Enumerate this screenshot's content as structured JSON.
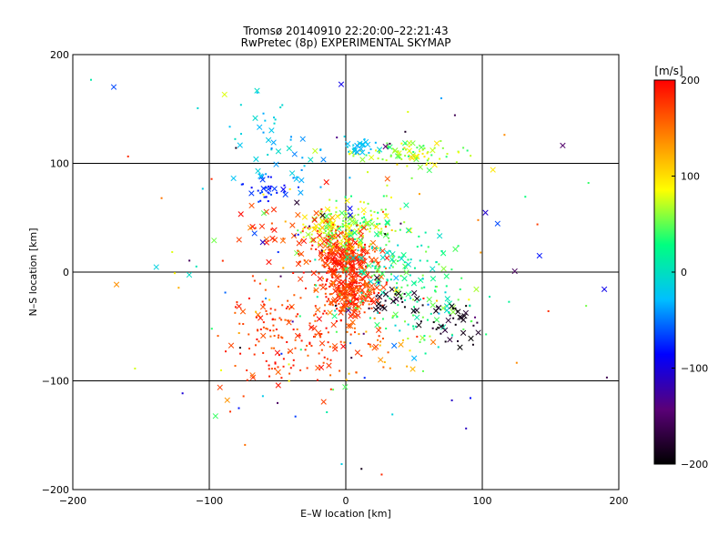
{
  "chart_data": {
    "type": "scatter",
    "title_line1": "Tromsø 20140910 22:20:00–22:21:43",
    "title_line2": "RwPretec (8p) EXPERIMENTAL SKYMAP",
    "xlabel": "E–W location [km]",
    "ylabel": "N–S location [km]",
    "xlim": [
      -200,
      200
    ],
    "ylim": [
      -200,
      200
    ],
    "xticks": [
      -200,
      -100,
      0,
      100,
      200
    ],
    "yticks": [
      -200,
      -100,
      0,
      100,
      200
    ],
    "gridlines": [
      -100,
      0,
      100
    ],
    "grid": true,
    "colorbar": {
      "label": "[m/s]",
      "range": [
        -200,
        200
      ],
      "ticks": [
        200,
        100,
        0,
        -100,
        -200
      ],
      "colormap": [
        "#000000",
        "#5a0077",
        "#0000ff",
        "#00bfff",
        "#00ff80",
        "#ffff00",
        "#ff8000",
        "#ff0000"
      ]
    },
    "markers": {
      "small": "dot",
      "large": "x"
    },
    "clusters": [
      {
        "cx": 0,
        "cy": 15,
        "sx": 12,
        "sy": 10,
        "n": 260,
        "vmin": 150,
        "vmax": 200,
        "xfrac": 0.45
      },
      {
        "cx": 2,
        "cy": -20,
        "sx": 12,
        "sy": 12,
        "n": 260,
        "vmin": 150,
        "vmax": 200,
        "xfrac": 0.45
      },
      {
        "cx": -10,
        "cy": 40,
        "sx": 12,
        "sy": 10,
        "n": 110,
        "vmin": 40,
        "vmax": 110,
        "xfrac": 0.35
      },
      {
        "cx": 15,
        "cy": 45,
        "sx": 12,
        "sy": 12,
        "n": 100,
        "vmin": 20,
        "vmax": 100,
        "xfrac": 0.3
      },
      {
        "cx": 45,
        "cy": 108,
        "sx": 22,
        "sy": 6,
        "n": 95,
        "vmin": 30,
        "vmax": 110,
        "xfrac": 0.35
      },
      {
        "cx": 8,
        "cy": 115,
        "sx": 8,
        "sy": 4,
        "n": 22,
        "vmin": -40,
        "vmax": -10,
        "xfrac": 0.6
      },
      {
        "cx": 35,
        "cy": 8,
        "sx": 20,
        "sy": 12,
        "n": 110,
        "vmin": -10,
        "vmax": 60,
        "xfrac": 0.3
      },
      {
        "cx": 55,
        "cy": -35,
        "sx": 25,
        "sy": 15,
        "n": 90,
        "vmin": -10,
        "vmax": 70,
        "xfrac": 0.2
      },
      {
        "cx": 80,
        "cy": -45,
        "sx": 14,
        "sy": 10,
        "n": 40,
        "vmin": -200,
        "vmax": -170,
        "xfrac": 0.5
      },
      {
        "cx": 35,
        "cy": -25,
        "sx": 10,
        "sy": 8,
        "n": 25,
        "vmin": -200,
        "vmax": -170,
        "xfrac": 0.6
      },
      {
        "cx": -45,
        "cy": -60,
        "sx": 25,
        "sy": 25,
        "n": 160,
        "vmin": 150,
        "vmax": 200,
        "xfrac": 0.15
      },
      {
        "cx": -40,
        "cy": 30,
        "sx": 22,
        "sy": 15,
        "n": 60,
        "vmin": 150,
        "vmax": 200,
        "xfrac": 0.5
      },
      {
        "cx": -55,
        "cy": 75,
        "sx": 8,
        "sy": 6,
        "n": 35,
        "vmin": -90,
        "vmax": -60,
        "xfrac": 0.3
      },
      {
        "cx": -40,
        "cy": 105,
        "sx": 25,
        "sy": 15,
        "n": 35,
        "vmin": -50,
        "vmax": 0,
        "xfrac": 0.5
      },
      {
        "cx": -60,
        "cy": 140,
        "sx": 15,
        "sy": 12,
        "n": 18,
        "vmin": -40,
        "vmax": 0,
        "xfrac": 0.4
      },
      {
        "cx": 20,
        "cy": -70,
        "sx": 15,
        "sy": 15,
        "n": 40,
        "vmin": 110,
        "vmax": 180,
        "xfrac": 0.2
      },
      {
        "cx": 0,
        "cy": 0,
        "sx": 95,
        "sy": 95,
        "n": 140,
        "vmin": -200,
        "vmax": 200,
        "xfrac": 0.25
      }
    ]
  }
}
